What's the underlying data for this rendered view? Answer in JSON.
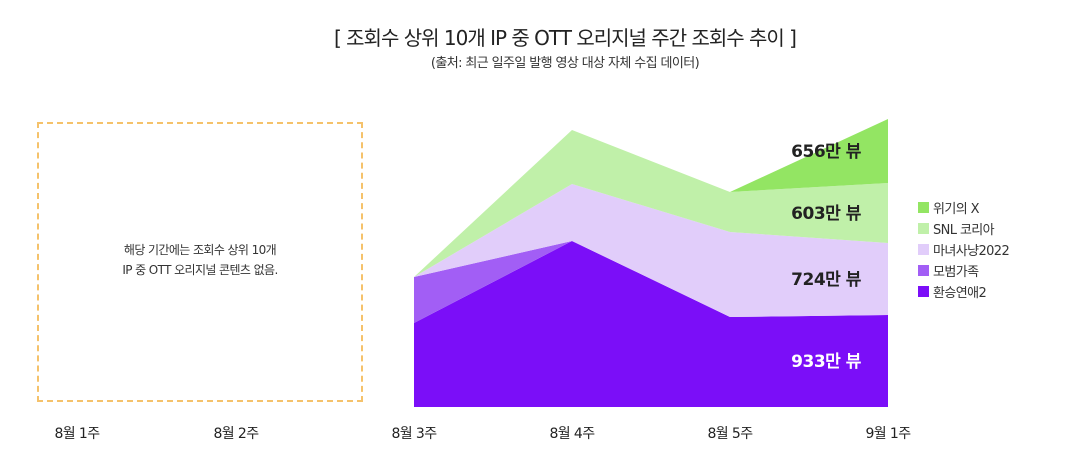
{
  "header": {
    "title": "[ 조회수 상위 10개 IP 중 OTT 오리지널 주간 조회수 추이 ]",
    "subtitle": "(출처: 최근 일주일 발행 영상 대상 자체 수집 데이터)"
  },
  "empty_notice": {
    "line1": "해당 기간에는 조회수 상위 10개",
    "line2": "IP 중 OTT 오리지널 콘텐츠 없음."
  },
  "chart_data": {
    "type": "area",
    "stacked": true,
    "categories": [
      "8월 1주",
      "8월 2주",
      "8월 3주",
      "8월 4주",
      "8월 5주",
      "9월 1주"
    ],
    "x_labels": [
      "8월 1주",
      "8월 2주",
      "8월 3주",
      "8월 4주",
      "8월 5주",
      "9월 1주"
    ],
    "plotted_from_index": 2,
    "unit": "만 뷰",
    "series": [
      {
        "name": "환승연애2",
        "color": "#7b0ef8",
        "values": [
          null,
          null,
          420,
          830,
          450,
          460
        ]
      },
      {
        "name": "모범가족",
        "color": "#a25ef5",
        "values": [
          null,
          null,
          230,
          0,
          0,
          0
        ]
      },
      {
        "name": "마녀사냥2022",
        "color": "#e1cdfa",
        "values": [
          null,
          null,
          0,
          285,
          425,
          360
        ]
      },
      {
        "name": "SNL 코리아",
        "color": "#c0f0a9",
        "values": [
          null,
          null,
          0,
          270,
          200,
          300
        ]
      },
      {
        "name": "위기의 X",
        "color": "#93e563",
        "values": [
          null,
          null,
          0,
          0,
          0,
          320
        ]
      }
    ],
    "data_labels": [
      {
        "series": "위기의 X",
        "text": "656만 뷰",
        "color": "#222222"
      },
      {
        "series": "SNL 코리아",
        "text": "603만 뷰",
        "color": "#222222"
      },
      {
        "series": "마녀사냥2022",
        "text": "724만 뷰",
        "color": "#222222"
      },
      {
        "series": "환승연애2",
        "text": "933만 뷰",
        "color": "#ffffff"
      }
    ],
    "ylim": [
      0,
      1700
    ],
    "legend_position": "right",
    "grid": false
  }
}
